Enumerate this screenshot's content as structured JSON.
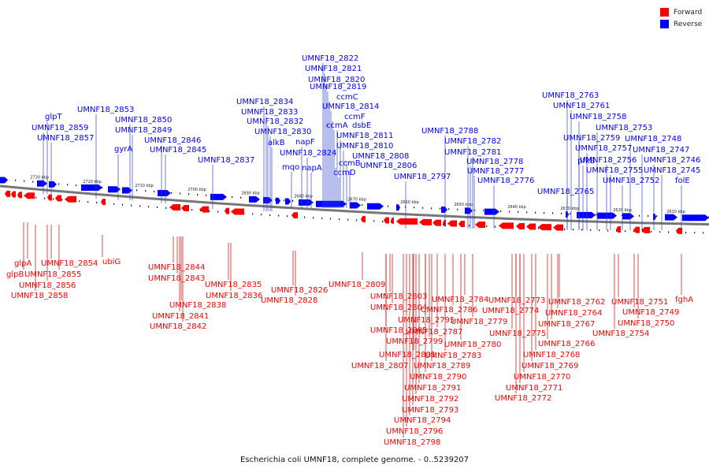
{
  "caption": "Escherichia coli UMNF18, complete genome. - 0..5239207",
  "legend": [
    {
      "label": "Forward",
      "color": "#ff0000"
    },
    {
      "label": "Reverse",
      "color": "#0000ff"
    }
  ],
  "colors": {
    "forward": "#ff0000",
    "reverse": "#0000ff",
    "forward_line": "#cc0000",
    "reverse_line": "#3344cc",
    "backbone": "#777777"
  },
  "kbp_ticks": [
    "2730 kbp",
    "2720 kbp",
    "2710 kbp",
    "2700 kbp",
    "2690 kbp",
    "2680 kbp",
    "2670 kbp",
    "2660 kbp",
    "2650 kbp",
    "2640 kbp",
    "2630 kbp",
    "2620 kbp",
    "2610 kbp"
  ],
  "reverse_labels": [
    "UMNF18_2822",
    "UMNF18_2821",
    "UMNF18_2820",
    "UMNF18_2819",
    "ccmC",
    "UMNF18_2814",
    "ccmF",
    "ccmA",
    "dsbE",
    "UMNF18_2811",
    "UMNF18_2810",
    "UMNF18_2808",
    "UMNF18_2806",
    "ccmB",
    "ccmD",
    "UMNF18_2834",
    "UMNF18_2833",
    "UMNF18_2832",
    "UMNF18_2830",
    "alkB",
    "napF",
    "UMNF18_2824",
    "mqo",
    "napA",
    "UMNF18_2853",
    "glpT",
    "UMNF18_2850",
    "UMNF18_2849",
    "UMNF18_2859",
    "UMNF18_2857",
    "UMNF18_2846",
    "UMNF18_2845",
    "gyrA",
    "UMNF18_2837",
    "UMNF18_2788",
    "UMNF18_2782",
    "UMNF18_2781",
    "UMNF18_2797",
    "UMNF18_2778",
    "UMNF18_2777",
    "UMNF18_2776",
    "UMNF18_2763",
    "UMNF18_2761",
    "UMNF18_2758",
    "UMNF18_2753",
    "UMNF18_2759",
    "UMNF18_2748",
    "UMNF18_2757",
    "UMNF18_2747",
    "pfkB",
    "UMNF18_2756",
    "UMNF18_2746",
    "UMNF18_2755",
    "UMNF18_2745",
    "UMNF18_2752",
    "folE",
    "UMNF18_2765"
  ],
  "forward_labels": [
    "glpA",
    "UMNF18_2854",
    "glpB",
    "UMNF18_2855",
    "UMNF18_2856",
    "UMNF18_2858",
    "ubiG",
    "UMNF18_2844",
    "UMNF18_2843",
    "UMNF18_2835",
    "UMNF18_2836",
    "UMNF18_2838",
    "UMNF18_2841",
    "UMNF18_2842",
    "UMNF18_2826",
    "UMNF18_2828",
    "UMNF18_2809",
    "UMNF18_2803",
    "UMNF18_2804",
    "UMNF18_2784",
    "UMNF18_2786",
    "UMNF18_2795",
    "UMNF18_2779",
    "UMNF18_2805",
    "UMNF18_2787",
    "UMNF18_2799",
    "UMNF18_2780",
    "UMNF18_2801",
    "UMNF18_2783",
    "UMNF18_2807",
    "UMNF18_2789",
    "UMNF18_2790",
    "UMNF18_2791",
    "UMNF18_2792",
    "UMNF18_2793",
    "UMNF18_2794",
    "UMNF18_2796",
    "UMNF18_2798",
    "UMNF18_2773",
    "UMNF18_2774",
    "UMNF18_2762",
    "UMNF18_2764",
    "UMNF18_2775",
    "UMNF18_2767",
    "UMNF18_2766",
    "UMNF18_2768",
    "UMNF18_2769",
    "UMNF18_2770",
    "UMNF18_2771",
    "UMNF18_2772",
    "UMNF18_2751",
    "UMNF18_2749",
    "UMNF18_2750",
    "UMNF18_2754",
    "fghA"
  ]
}
